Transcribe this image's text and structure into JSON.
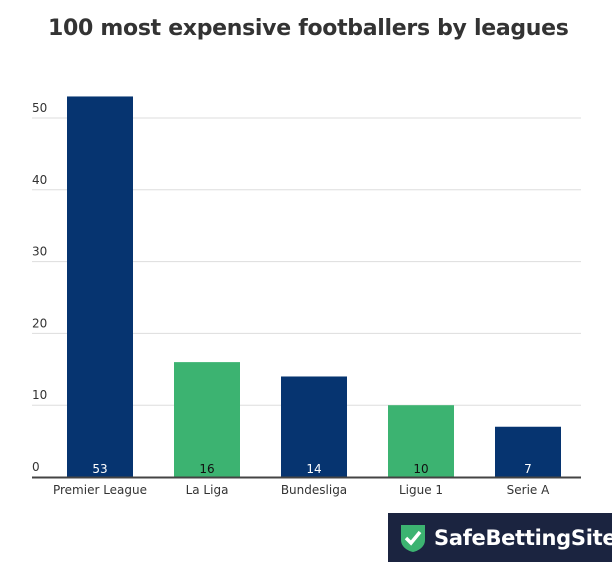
{
  "chart_data": {
    "type": "bar",
    "title": "100 most expensive footballers by leagues",
    "categories": [
      "Premier League",
      "La Liga",
      "Bundesliga",
      "Ligue 1",
      "Serie A"
    ],
    "values": [
      53,
      16,
      14,
      10,
      7
    ],
    "colors": [
      "#063470",
      "#3cb371",
      "#063470",
      "#3cb371",
      "#063470"
    ],
    "label_colors": [
      "#ffffff",
      "#111111",
      "#ffffff",
      "#111111",
      "#ffffff"
    ],
    "yticks": [
      0,
      10,
      20,
      30,
      40,
      50
    ],
    "ylim": [
      0,
      53
    ],
    "xlabel": "",
    "ylabel": "",
    "grid": true,
    "legend": "none"
  },
  "brand": {
    "name": "SafeBettingSites",
    "bg": "#1b2440",
    "accent": "#3cb371"
  }
}
